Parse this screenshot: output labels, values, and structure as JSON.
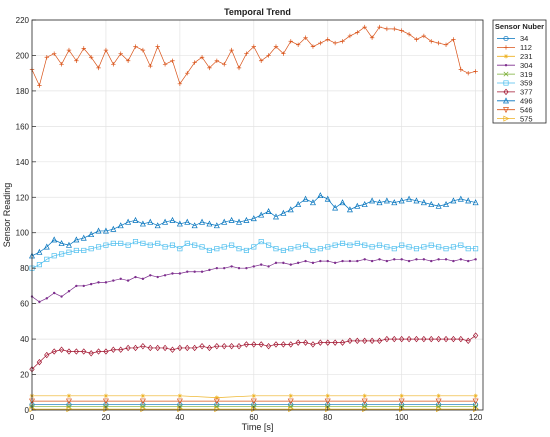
{
  "chart_data": {
    "type": "line",
    "title": "Temporal Trend",
    "xlabel": "Time [s]",
    "ylabel": "Sensor Reading",
    "xlim": [
      0,
      122
    ],
    "ylim": [
      0,
      220
    ],
    "xticks": [
      0,
      20,
      40,
      60,
      80,
      100,
      120
    ],
    "yticks": [
      0,
      20,
      40,
      60,
      80,
      100,
      120,
      140,
      160,
      180,
      200,
      220
    ],
    "grid": true,
    "legend_title": "Sensor Nuber",
    "legend_position": "outside-top-right",
    "series": [
      {
        "name": "34",
        "color": "#0072BD",
        "marker": "circle",
        "x": [
          0,
          10,
          20,
          30,
          40,
          50,
          60,
          70,
          80,
          90,
          100,
          110,
          120
        ],
        "y": [
          3,
          3,
          3,
          3,
          3,
          3,
          3,
          3,
          3,
          3,
          3,
          3,
          3
        ]
      },
      {
        "name": "112",
        "color": "#D95319",
        "marker": "plus",
        "x": [
          0,
          2,
          4,
          6,
          8,
          10,
          12,
          14,
          16,
          18,
          20,
          22,
          24,
          26,
          28,
          30,
          32,
          34,
          36,
          38,
          40,
          42,
          44,
          46,
          48,
          50,
          52,
          54,
          56,
          58,
          60,
          62,
          64,
          66,
          68,
          70,
          72,
          74,
          76,
          78,
          80,
          82,
          84,
          86,
          88,
          90,
          92,
          94,
          96,
          98,
          100,
          102,
          104,
          106,
          108,
          110,
          112,
          114,
          116,
          118,
          120
        ],
        "y": [
          192,
          183,
          199,
          201,
          195,
          203,
          197,
          204,
          199,
          193,
          203,
          195,
          201,
          197,
          205,
          203,
          194,
          205,
          195,
          197,
          184,
          190,
          196,
          199,
          193,
          197,
          195,
          203,
          193,
          201,
          205,
          197,
          200,
          205,
          201,
          208,
          206,
          210,
          205,
          207,
          209,
          207,
          208,
          211,
          213,
          216,
          210,
          216,
          215,
          215,
          214,
          212,
          209,
          211,
          208,
          207,
          206,
          209,
          192,
          190,
          191
        ]
      },
      {
        "name": "231",
        "color": "#EDB120",
        "marker": "asterisk",
        "x": [
          0,
          10,
          20,
          30,
          40,
          50,
          60,
          70,
          80,
          90,
          100,
          110,
          120
        ],
        "y": [
          8,
          8,
          8,
          8,
          8,
          7,
          8,
          8,
          8,
          8,
          8,
          8,
          8
        ]
      },
      {
        "name": "304",
        "color": "#7E2F8E",
        "marker": "point",
        "x": [
          0,
          2,
          4,
          6,
          8,
          10,
          12,
          14,
          16,
          18,
          20,
          22,
          24,
          26,
          28,
          30,
          32,
          34,
          36,
          38,
          40,
          42,
          44,
          46,
          48,
          50,
          52,
          54,
          56,
          58,
          60,
          62,
          64,
          66,
          68,
          70,
          72,
          74,
          76,
          78,
          80,
          82,
          84,
          86,
          88,
          90,
          92,
          94,
          96,
          98,
          100,
          102,
          104,
          106,
          108,
          110,
          112,
          114,
          116,
          118,
          120
        ],
        "y": [
          64,
          61,
          63,
          66,
          64,
          67,
          70,
          70,
          71,
          72,
          72,
          73,
          74,
          73,
          75,
          74,
          76,
          75,
          76,
          77,
          77,
          78,
          78,
          78,
          79,
          80,
          80,
          81,
          80,
          80,
          81,
          82,
          81,
          83,
          83,
          82,
          83,
          84,
          83,
          84,
          84,
          83,
          84,
          84,
          84,
          85,
          84,
          85,
          84,
          85,
          85,
          84,
          85,
          85,
          84,
          85,
          85,
          84,
          85,
          84,
          85
        ]
      },
      {
        "name": "319",
        "color": "#77AC30",
        "marker": "cross",
        "x": [
          0,
          10,
          20,
          30,
          40,
          50,
          60,
          70,
          80,
          90,
          100,
          110,
          120
        ],
        "y": [
          2,
          2,
          2,
          2,
          2,
          2,
          2,
          2,
          2,
          2,
          2,
          2,
          2
        ]
      },
      {
        "name": "359",
        "color": "#4DBEEE",
        "marker": "square",
        "x": [
          0,
          2,
          4,
          6,
          8,
          10,
          12,
          14,
          16,
          18,
          20,
          22,
          24,
          26,
          28,
          30,
          32,
          34,
          36,
          38,
          40,
          42,
          44,
          46,
          48,
          50,
          52,
          54,
          56,
          58,
          60,
          62,
          64,
          66,
          68,
          70,
          72,
          74,
          76,
          78,
          80,
          82,
          84,
          86,
          88,
          90,
          92,
          94,
          96,
          98,
          100,
          102,
          104,
          106,
          108,
          110,
          112,
          114,
          116,
          118,
          120
        ],
        "y": [
          80,
          82,
          85,
          87,
          88,
          89,
          90,
          90,
          91,
          92,
          93,
          94,
          94,
          93,
          95,
          94,
          93,
          94,
          92,
          93,
          91,
          94,
          93,
          92,
          90,
          91,
          92,
          93,
          91,
          90,
          92,
          95,
          93,
          91,
          90,
          91,
          92,
          93,
          90,
          91,
          92,
          93,
          94,
          93,
          94,
          93,
          92,
          93,
          92,
          91,
          93,
          92,
          91,
          92,
          93,
          92,
          91,
          92,
          93,
          91,
          91
        ]
      },
      {
        "name": "377",
        "color": "#A2142F",
        "marker": "diamond",
        "x": [
          0,
          2,
          4,
          6,
          8,
          10,
          12,
          14,
          16,
          18,
          20,
          22,
          24,
          26,
          28,
          30,
          32,
          34,
          36,
          38,
          40,
          42,
          44,
          46,
          48,
          50,
          52,
          54,
          56,
          58,
          60,
          62,
          64,
          66,
          68,
          70,
          72,
          74,
          76,
          78,
          80,
          82,
          84,
          86,
          88,
          90,
          92,
          94,
          96,
          98,
          100,
          102,
          104,
          106,
          108,
          110,
          112,
          114,
          116,
          118,
          120
        ],
        "y": [
          23,
          27,
          31,
          33,
          34,
          33,
          33,
          33,
          32,
          33,
          33,
          34,
          34,
          35,
          35,
          36,
          35,
          35,
          35,
          34,
          35,
          35,
          35,
          36,
          35,
          36,
          36,
          36,
          36,
          37,
          37,
          37,
          36,
          37,
          37,
          37,
          38,
          38,
          37,
          38,
          38,
          38,
          38,
          39,
          39,
          39,
          39,
          39,
          40,
          40,
          40,
          40,
          40,
          40,
          40,
          40,
          40,
          40,
          40,
          39,
          42
        ]
      },
      {
        "name": "496",
        "color": "#0072BD",
        "marker": "triangle-up",
        "x": [
          0,
          2,
          4,
          6,
          8,
          10,
          12,
          14,
          16,
          18,
          20,
          22,
          24,
          26,
          28,
          30,
          32,
          34,
          36,
          38,
          40,
          42,
          44,
          46,
          48,
          50,
          52,
          54,
          56,
          58,
          60,
          62,
          64,
          66,
          68,
          70,
          72,
          74,
          76,
          78,
          80,
          82,
          84,
          86,
          88,
          90,
          92,
          94,
          96,
          98,
          100,
          102,
          104,
          106,
          108,
          110,
          112,
          114,
          116,
          118,
          120
        ],
        "y": [
          87,
          89,
          92,
          96,
          94,
          93,
          96,
          97,
          99,
          101,
          101,
          102,
          104,
          106,
          107,
          105,
          106,
          104,
          106,
          107,
          105,
          106,
          104,
          106,
          105,
          104,
          106,
          107,
          106,
          107,
          108,
          110,
          112,
          109,
          111,
          113,
          116,
          119,
          117,
          121,
          119,
          114,
          117,
          113,
          115,
          116,
          118,
          117,
          118,
          117,
          118,
          119,
          118,
          117,
          116,
          115,
          116,
          118,
          119,
          118,
          117
        ]
      },
      {
        "name": "546",
        "color": "#D95319",
        "marker": "triangle-down",
        "x": [
          0,
          10,
          20,
          30,
          40,
          50,
          60,
          70,
          80,
          90,
          100,
          110,
          120
        ],
        "y": [
          5,
          5,
          5,
          5,
          5,
          5,
          5,
          5,
          5,
          5,
          5,
          5,
          5
        ]
      },
      {
        "name": "575",
        "color": "#EDB120",
        "marker": "triangle-right",
        "x": [
          0,
          10,
          20,
          30,
          40,
          50,
          60,
          70,
          80,
          90,
          100,
          110,
          120
        ],
        "y": [
          0.5,
          0.5,
          0.5,
          0.5,
          0.5,
          0.5,
          0.5,
          0.5,
          0.5,
          0.5,
          0.5,
          0.5,
          0.5
        ]
      }
    ]
  }
}
